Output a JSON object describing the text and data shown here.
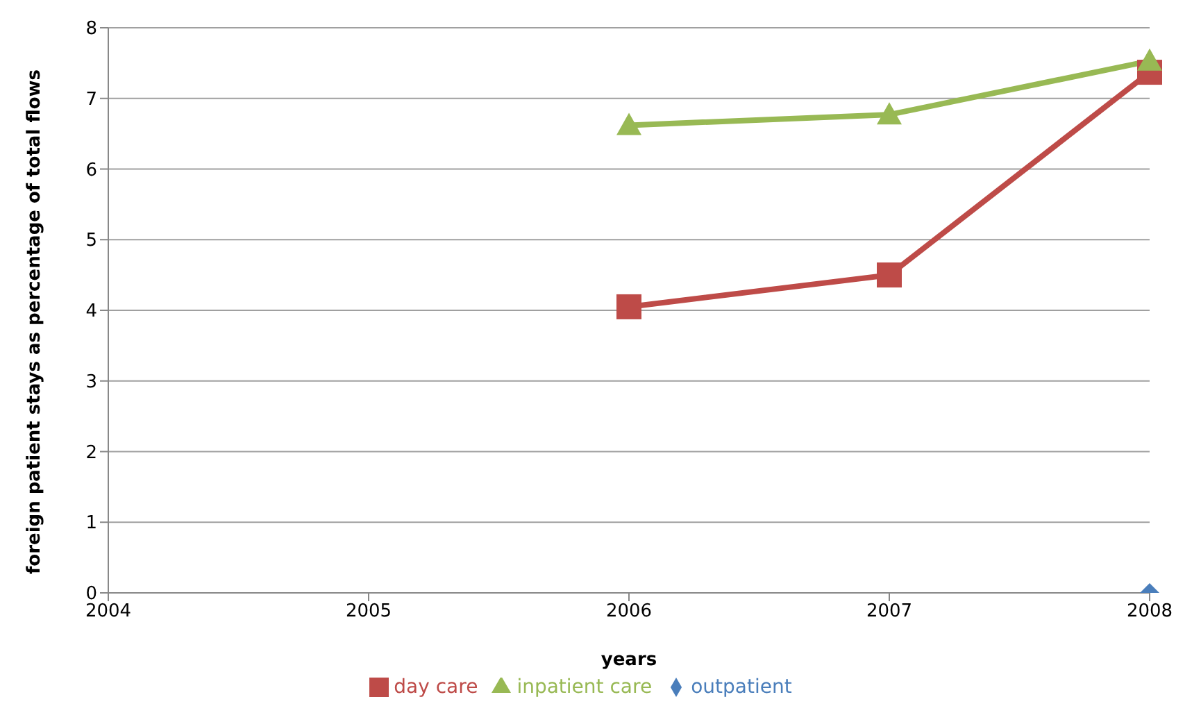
{
  "chart_data": {
    "type": "line",
    "xlabel": "years",
    "ylabel": "foreign patient stays as percentage of total flows",
    "categories": [
      "2004",
      "2005",
      "2006",
      "2007",
      "2008"
    ],
    "series": [
      {
        "name": "outpatient",
        "color": "#4a7ebb",
        "marker": "diamond",
        "values": [
          null,
          null,
          null,
          null,
          0
        ]
      },
      {
        "name": "day care",
        "color": "#be4b48",
        "marker": "square",
        "values": [
          null,
          null,
          4.05,
          4.5,
          7.37
        ]
      },
      {
        "name": "inpatient care",
        "color": "#98b954",
        "marker": "triangle",
        "values": [
          null,
          null,
          6.62,
          6.77,
          7.53
        ]
      }
    ],
    "ylim": [
      0,
      8
    ],
    "yticks": [
      0,
      1,
      2,
      3,
      4,
      5,
      6,
      7,
      8
    ],
    "grid": "y",
    "legend": "bottom"
  }
}
